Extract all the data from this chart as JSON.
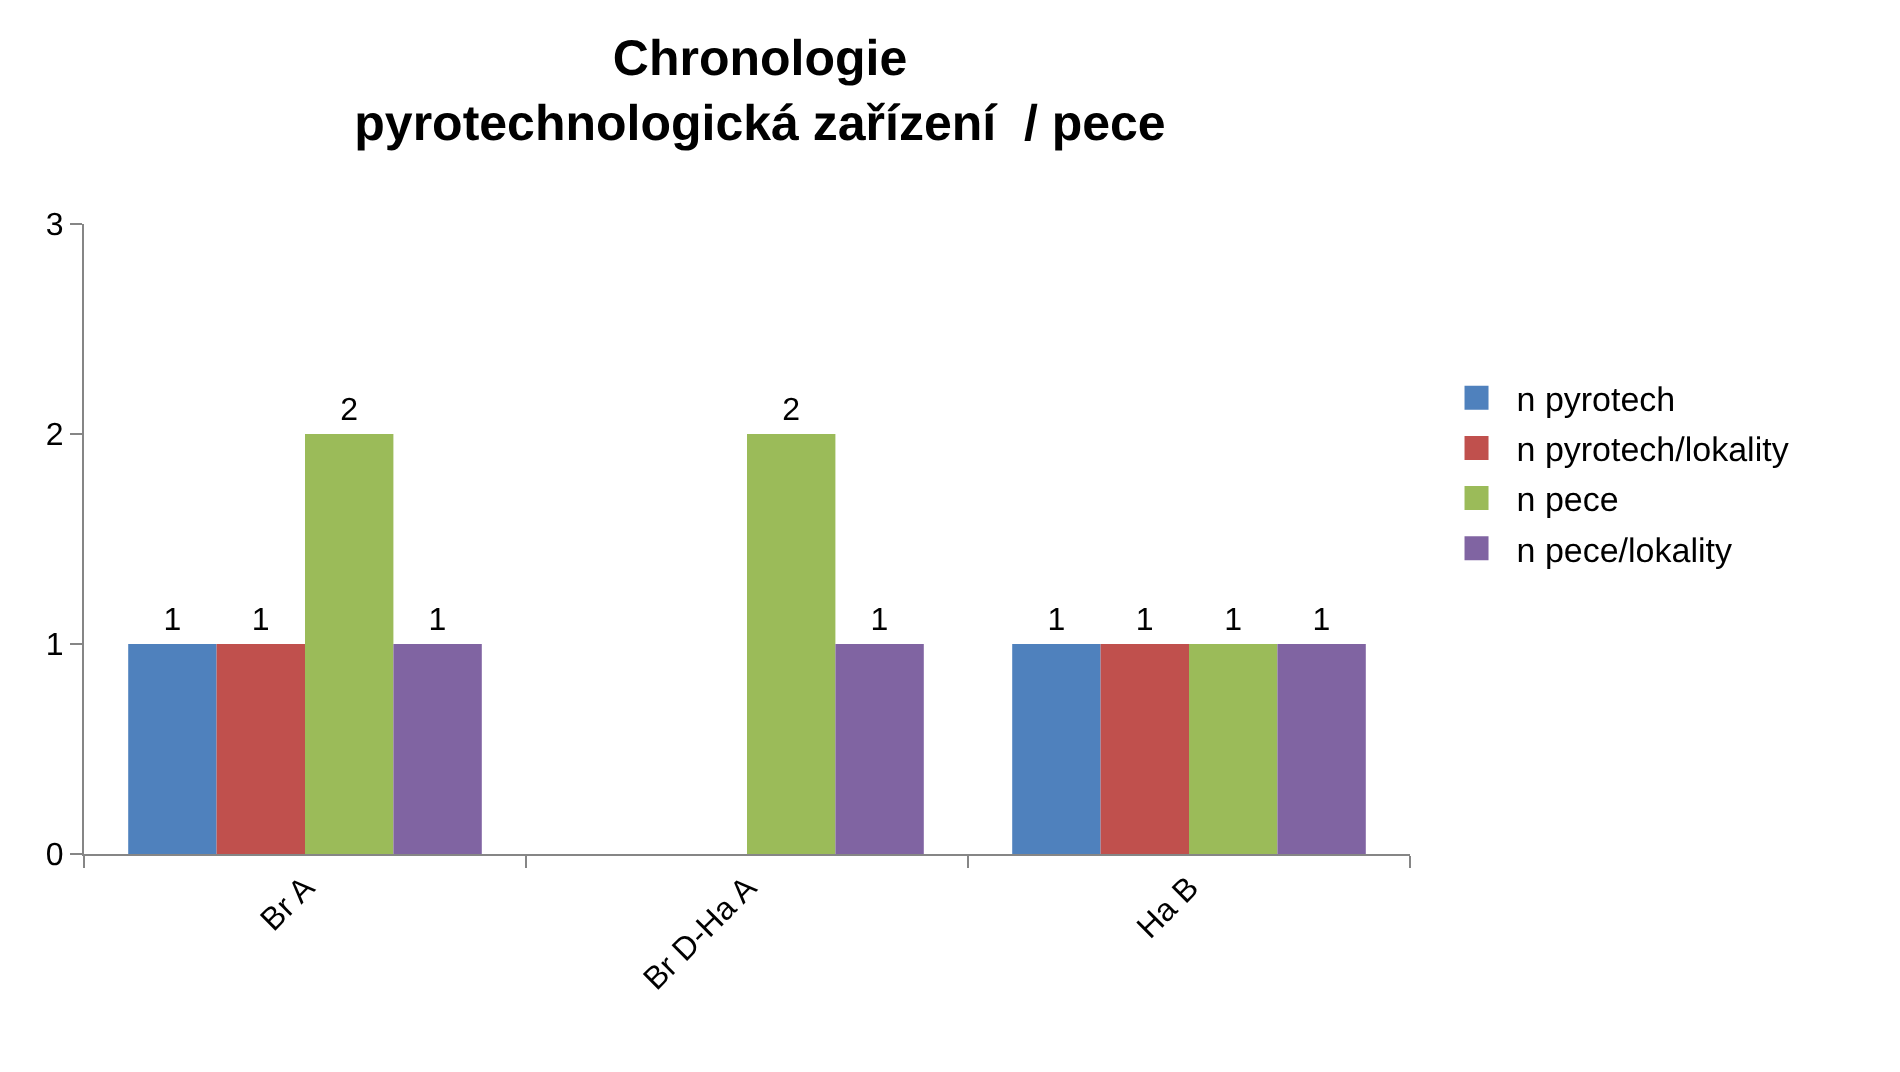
{
  "chart_data": {
    "type": "bar",
    "title": "Chronologie\npyrotechnologická zařízení  / pece",
    "categories": [
      "Br A",
      "Br D-Ha A",
      "Ha B"
    ],
    "series": [
      {
        "name": "n pyrotech",
        "color": "#4f81bd",
        "values": [
          1,
          null,
          1
        ]
      },
      {
        "name": "n pyrotech/lokality",
        "color": "#c0504d",
        "values": [
          1,
          null,
          1
        ]
      },
      {
        "name": "n pece",
        "color": "#9bbb59",
        "values": [
          2,
          2,
          1
        ]
      },
      {
        "name": "n pece/lokality",
        "color": "#8064a2",
        "values": [
          1,
          1,
          1
        ]
      }
    ],
    "ylim": [
      0,
      3
    ],
    "yticks": [
      0,
      1,
      2,
      3
    ],
    "grid": false,
    "legend": "right",
    "data_labels": true
  }
}
